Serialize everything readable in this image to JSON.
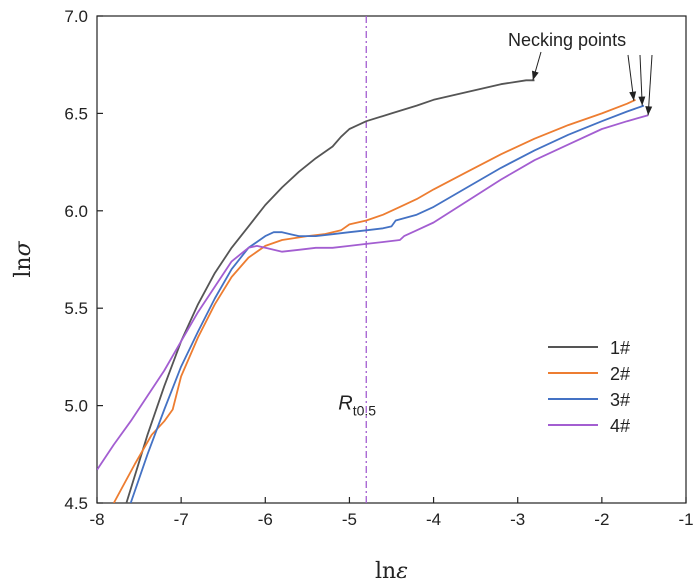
{
  "chart_data": {
    "type": "line",
    "xlabel": "ln",
    "xlabel_symbol": "ε",
    "ylabel": "ln",
    "ylabel_symbol": "σ",
    "xlim": [
      -8,
      -1
    ],
    "ylim": [
      4.5,
      7.0
    ],
    "x_ticks": [
      -8,
      -7,
      -6,
      -5,
      -4,
      -3,
      -2,
      -1
    ],
    "y_ticks": [
      4.5,
      5.0,
      5.5,
      6.0,
      6.5,
      7.0
    ],
    "x_tick_labels": [
      "-8",
      "-7",
      "-6",
      "-5",
      "-4",
      "-3",
      "-2",
      "-1"
    ],
    "y_tick_labels": [
      "4.5",
      "5.0",
      "5.5",
      "6.0",
      "6.5",
      "7.0"
    ],
    "grid": false,
    "legend_position": "bottom-right",
    "series": [
      {
        "name": "1#",
        "color": "#555555",
        "x": [
          -7.65,
          -7.4,
          -7.2,
          -7.0,
          -6.8,
          -6.6,
          -6.4,
          -6.2,
          -6.0,
          -5.8,
          -5.6,
          -5.4,
          -5.2,
          -5.1,
          -5.0,
          -4.8,
          -4.5,
          -4.2,
          -4.0,
          -3.6,
          -3.2,
          -2.9,
          -2.8
        ],
        "y": [
          4.5,
          4.85,
          5.1,
          5.33,
          5.52,
          5.68,
          5.81,
          5.92,
          6.03,
          6.12,
          6.2,
          6.27,
          6.33,
          6.38,
          6.42,
          6.46,
          6.5,
          6.54,
          6.57,
          6.61,
          6.65,
          6.67,
          6.67
        ]
      },
      {
        "name": "2#",
        "color": "#ed7d31",
        "x": [
          -7.8,
          -7.55,
          -7.35,
          -7.2,
          -7.1,
          -7.0,
          -6.8,
          -6.6,
          -6.4,
          -6.2,
          -6.0,
          -5.8,
          -5.5,
          -5.3,
          -5.1,
          -5.0,
          -4.8,
          -4.6,
          -4.4,
          -4.2,
          -4.0,
          -3.6,
          -3.2,
          -2.8,
          -2.4,
          -2.0,
          -1.7,
          -1.6
        ],
        "y": [
          4.5,
          4.7,
          4.85,
          4.92,
          4.98,
          5.15,
          5.35,
          5.52,
          5.66,
          5.76,
          5.82,
          5.85,
          5.87,
          5.88,
          5.9,
          5.93,
          5.95,
          5.98,
          6.02,
          6.06,
          6.11,
          6.2,
          6.29,
          6.37,
          6.44,
          6.5,
          6.55,
          6.57
        ]
      },
      {
        "name": "3#",
        "color": "#4472c4",
        "x": [
          -7.6,
          -7.4,
          -7.2,
          -7.0,
          -6.8,
          -6.6,
          -6.4,
          -6.2,
          -6.0,
          -5.9,
          -5.8,
          -5.7,
          -5.6,
          -5.4,
          -5.2,
          -5.0,
          -4.8,
          -4.6,
          -4.5,
          -4.45,
          -4.2,
          -4.0,
          -3.6,
          -3.2,
          -2.8,
          -2.4,
          -2.0,
          -1.7,
          -1.5
        ],
        "y": [
          4.5,
          4.75,
          4.98,
          5.2,
          5.38,
          5.55,
          5.7,
          5.81,
          5.87,
          5.89,
          5.89,
          5.88,
          5.87,
          5.87,
          5.88,
          5.89,
          5.9,
          5.91,
          5.92,
          5.95,
          5.98,
          6.02,
          6.12,
          6.22,
          6.31,
          6.39,
          6.46,
          6.51,
          6.54
        ]
      },
      {
        "name": "4#",
        "color": "#a35ed1",
        "x": [
          -8.0,
          -7.8,
          -7.6,
          -7.4,
          -7.2,
          -7.0,
          -6.8,
          -6.6,
          -6.4,
          -6.2,
          -6.1,
          -6.0,
          -5.9,
          -5.8,
          -5.6,
          -5.4,
          -5.2,
          -5.0,
          -4.8,
          -4.6,
          -4.4,
          -4.35,
          -4.2,
          -4.0,
          -3.6,
          -3.2,
          -2.8,
          -2.4,
          -2.0,
          -1.7,
          -1.45
        ],
        "y": [
          4.67,
          4.8,
          4.92,
          5.05,
          5.18,
          5.33,
          5.48,
          5.61,
          5.74,
          5.81,
          5.82,
          5.81,
          5.8,
          5.79,
          5.8,
          5.81,
          5.81,
          5.82,
          5.83,
          5.84,
          5.85,
          5.87,
          5.9,
          5.94,
          6.05,
          6.16,
          6.26,
          6.34,
          6.42,
          6.46,
          6.49
        ]
      }
    ],
    "reference_line": {
      "x": -4.8,
      "color": "#a35ed1",
      "label_main": "R",
      "label_sub": "t0.5"
    },
    "annotation": {
      "text": "Necking points",
      "targets": [
        {
          "x": -2.82,
          "y": 6.67
        },
        {
          "x": -1.62,
          "y": 6.565
        },
        {
          "x": -1.52,
          "y": 6.54
        },
        {
          "x": -1.45,
          "y": 6.49
        }
      ]
    }
  }
}
